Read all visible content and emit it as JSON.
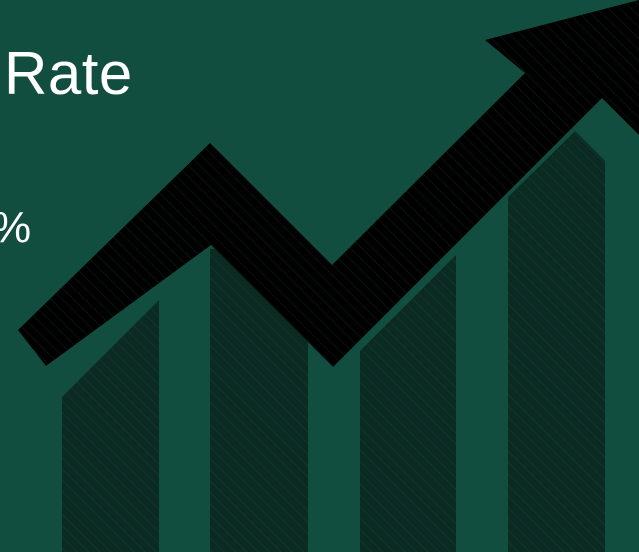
{
  "slide": {
    "title_fragment": "Rate",
    "value_fragment": "%"
  },
  "graphic": {
    "icon": "rising-bar-chart-with-arrow-icon"
  },
  "colors": {
    "background": "#124E40",
    "text": "#FFFFFF",
    "bars": "#0B2A22",
    "arrow": "#000000",
    "hatch": "#1F5C4D"
  }
}
